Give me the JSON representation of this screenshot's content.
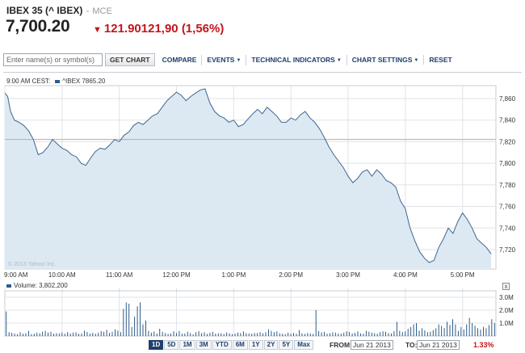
{
  "header": {
    "name": "IBEX 35 (^ IBEX)",
    "separator": "-",
    "exchange": "MCE",
    "price": "7,700.20",
    "change": "121.90121,90 (1,56%)",
    "change_color": "#c4141b",
    "arrow_icon": "down-arrow-icon"
  },
  "toolbar": {
    "symbol_placeholder": "Enter name(s) or symbol(s)",
    "get_chart_label": "GET CHART",
    "compare_label": "COMPARE",
    "events_label": "EVENTS",
    "technical_indicators_label": "TECHNICAL INDICATORS",
    "chart_settings_label": "CHART SETTINGS",
    "reset_label": "RESET"
  },
  "legend": {
    "time": "9:00 AM CEST:",
    "series": "^IBEX 7865.20"
  },
  "volume_legend": "Volume: 3,802,200",
  "close_label": "x",
  "watermark": "© 2013 Yahoo! Inc.",
  "ranges": [
    "1D",
    "5D",
    "1M",
    "3M",
    "YTD",
    "6M",
    "1Y",
    "2Y",
    "5Y",
    "Max"
  ],
  "active_range": "1D",
  "from_label": "FROM:",
  "from_date": "Jun 21 2013",
  "to_label": "TO:",
  "to_date": "Jun 21 2013",
  "period_change": "1.33%",
  "colors": {
    "line": "#3e6690",
    "area": "#dce9f3",
    "prev_close": "#d9a08a",
    "volume": "#2e5c8a",
    "grid": "#dfe3e8",
    "accent": "#1f3f6a"
  },
  "chart_data": [
    {
      "type": "area",
      "x_ticks": [
        "9:00 AM",
        "10:00 AM",
        "11:00 AM",
        "12:00 PM",
        "1:00 PM",
        "2:00 PM",
        "3:00 PM",
        "4:00 PM",
        "5:00 PM"
      ],
      "y_ticks": [
        "7,720",
        "7,740",
        "7,760",
        "7,780",
        "7,800",
        "7,820",
        "7,840",
        "7,860"
      ],
      "ylim": [
        7702,
        7872
      ],
      "previous_close": 7822.1,
      "grid": true,
      "series": [
        {
          "x": [
            "9:00",
            "9:03",
            "9:06",
            "9:10",
            "9:15",
            "9:20",
            "9:25",
            "9:30",
            "9:35",
            "9:40",
            "9:45",
            "9:50",
            "9:55",
            "10:00",
            "10:05",
            "10:10",
            "10:15",
            "10:20",
            "10:25",
            "10:30",
            "10:35",
            "10:40",
            "10:45",
            "10:50",
            "10:55",
            "11:00",
            "11:05",
            "11:10",
            "11:15",
            "11:20",
            "11:25",
            "11:30",
            "11:35",
            "11:40",
            "11:45",
            "11:50",
            "11:55",
            "12:00",
            "12:05",
            "12:10",
            "12:15",
            "12:20",
            "12:25",
            "12:30",
            "12:35",
            "12:40",
            "12:45",
            "12:50",
            "12:55",
            "13:00",
            "13:05",
            "13:10",
            "13:15",
            "13:20",
            "13:25",
            "13:30",
            "13:35",
            "13:40",
            "13:45",
            "13:50",
            "13:55",
            "14:00",
            "14:05",
            "14:10",
            "14:15",
            "14:20",
            "14:25",
            "14:30",
            "14:35",
            "14:40",
            "14:45",
            "14:50",
            "14:55",
            "15:00",
            "15:05",
            "15:10",
            "15:15",
            "15:20",
            "15:25",
            "15:30",
            "15:35",
            "15:40",
            "15:45",
            "15:50",
            "15:55",
            "16:00",
            "16:05",
            "16:10",
            "16:15",
            "16:20",
            "16:25",
            "16:30",
            "16:35",
            "16:40",
            "16:45",
            "16:50",
            "16:55",
            "17:00",
            "17:05",
            "17:10",
            "17:15",
            "17:20",
            "17:25",
            "17:30"
          ],
          "values": [
            7865,
            7862,
            7848,
            7840,
            7838,
            7835,
            7830,
            7822,
            7808,
            7810,
            7815,
            7822,
            7818,
            7814,
            7812,
            7808,
            7806,
            7800,
            7798,
            7805,
            7811,
            7814,
            7813,
            7817,
            7822,
            7820,
            7826,
            7829,
            7835,
            7838,
            7836,
            7840,
            7844,
            7846,
            7852,
            7858,
            7862,
            7866,
            7863,
            7858,
            7862,
            7865,
            7868,
            7869,
            7856,
            7848,
            7844,
            7842,
            7838,
            7840,
            7834,
            7836,
            7841,
            7846,
            7850,
            7846,
            7852,
            7848,
            7844,
            7838,
            7838,
            7842,
            7840,
            7845,
            7848,
            7842,
            7838,
            7832,
            7824,
            7815,
            7808,
            7802,
            7796,
            7788,
            7782,
            7786,
            7792,
            7794,
            7788,
            7794,
            7790,
            7784,
            7782,
            7778,
            7765,
            7758,
            7740,
            7728,
            7718,
            7712,
            7708,
            7710,
            7722,
            7730,
            7740,
            7735,
            7746,
            7754,
            7748,
            7740,
            7730,
            7726,
            7722,
            7716
          ]
        }
      ]
    },
    {
      "type": "bar",
      "series_name": "Volume",
      "y_ticks": [
        "1.0M",
        "2.0M",
        "3.0M"
      ],
      "ylim": [
        0,
        3500000
      ],
      "values": [
        1900000,
        300000,
        250000,
        200000,
        150000,
        300000,
        180000,
        220000,
        400000,
        150000,
        180000,
        260000,
        220000,
        330000,
        400000,
        260000,
        320000,
        180000,
        220000,
        200000,
        270000,
        180000,
        310000,
        200000,
        270000,
        290000,
        180000,
        200000,
        410000,
        310000,
        190000,
        250000,
        180000,
        260000,
        380000,
        330000,
        480000,
        240000,
        320000,
        520000,
        420000,
        300000,
        2100000,
        2600000,
        2500000,
        700000,
        1500000,
        2300000,
        2600000,
        900000,
        1200000,
        400000,
        260000,
        350000,
        200000,
        560000,
        320000,
        230000,
        170000,
        200000,
        370000,
        240000,
        380000,
        190000,
        200000,
        330000,
        230000,
        140000,
        300000,
        380000,
        220000,
        290000,
        160000,
        260000,
        320000,
        180000,
        210000,
        220000,
        170000,
        280000,
        210000,
        150000,
        190000,
        260000,
        240000,
        360000,
        220000,
        200000,
        180000,
        240000,
        230000,
        300000,
        210000,
        300000,
        520000,
        400000,
        300000,
        360000,
        220000,
        180000,
        150000,
        270000,
        190000,
        230000,
        180000,
        460000,
        210000,
        170000,
        240000,
        200000,
        160000,
        2000000,
        380000,
        280000,
        330000,
        180000,
        220000,
        290000,
        260000,
        200000,
        180000,
        260000,
        370000,
        310000,
        200000,
        250000,
        360000,
        200000,
        180000,
        400000,
        330000,
        260000,
        220000,
        180000,
        300000,
        360000,
        330000,
        230000,
        200000,
        380000,
        1100000,
        400000,
        300000,
        360000,
        560000,
        700000,
        900000,
        1000000,
        420000,
        600000,
        440000,
        300000,
        340000,
        460000,
        600000,
        900000,
        780000,
        620000,
        1100000,
        860000,
        1300000,
        900000,
        400000,
        700000,
        500000,
        900000,
        1400000,
        1000000,
        800000,
        600000,
        500000,
        700000,
        600000,
        850000,
        1300000,
        1000000
      ]
    }
  ]
}
